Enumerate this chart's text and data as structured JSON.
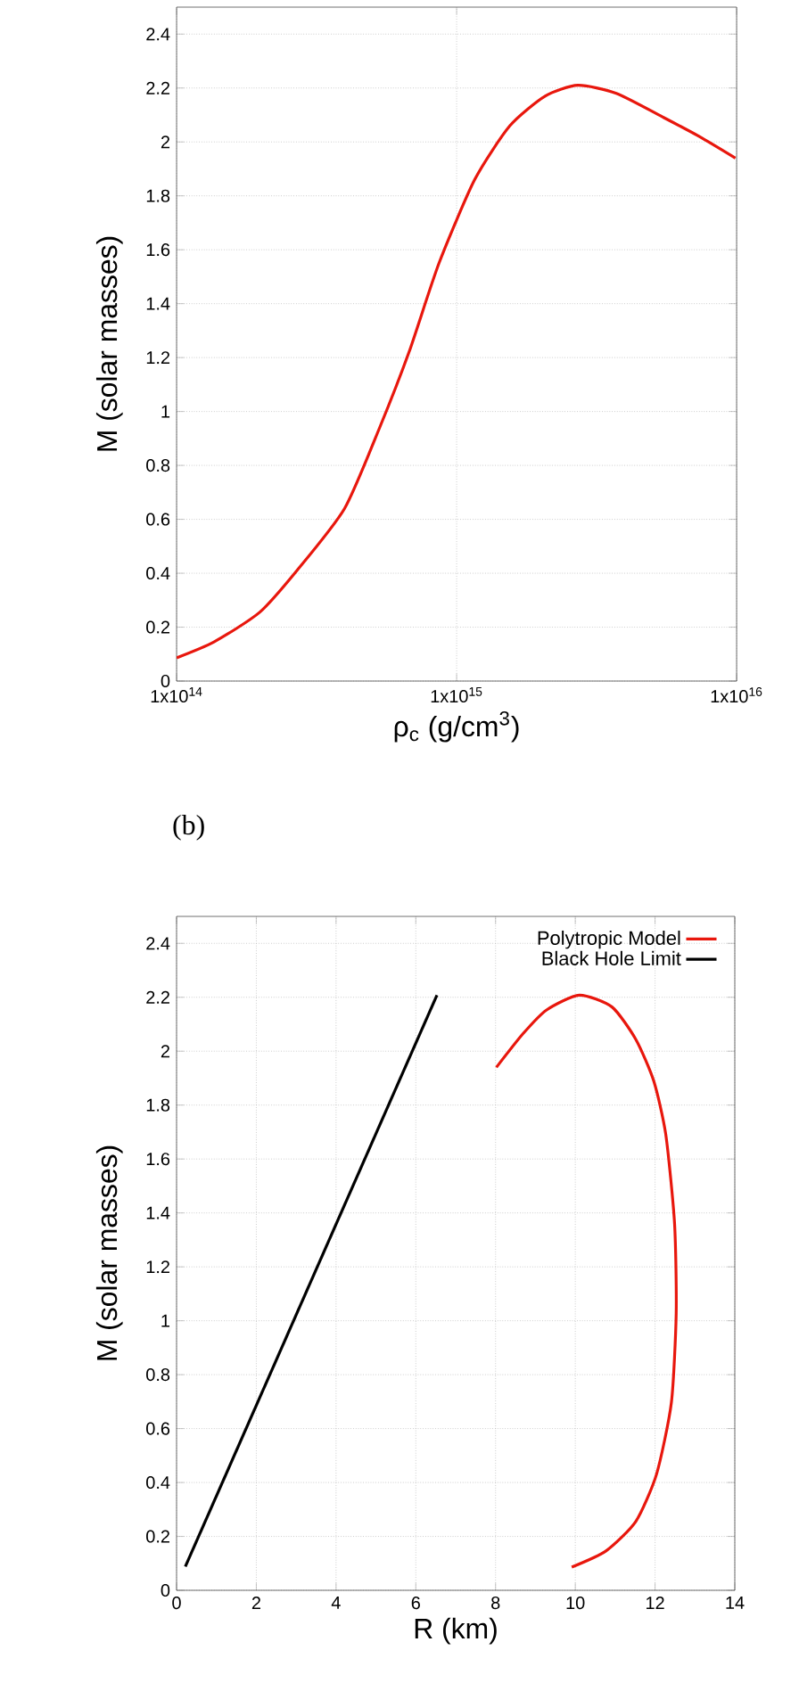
{
  "chart_data": [
    {
      "type": "line",
      "xlabel": "ρ$_{c}$ (g/cm$^{3}$)",
      "ylabel": "M (solar masses)",
      "log": "x",
      "grid": true,
      "xlim": [
        100000000000000.0,
        1e+16
      ],
      "ylim": [
        0,
        2.5
      ],
      "xticks": [
        {
          "value": 100000000000000.0,
          "label": "1x10$^{14}$"
        },
        {
          "value": 1000000000000000.0,
          "label": "1x10$^{15}$"
        },
        {
          "value": 1e+16,
          "label": "1x10$^{16}$"
        }
      ],
      "yticks": [
        0,
        0.2,
        0.4,
        0.6,
        0.8,
        1,
        1.2,
        1.4,
        1.6,
        1.8,
        2,
        2.2,
        2.4
      ],
      "series": [
        {
          "color": "#e8170d",
          "x": [
            100000000000000.0,
            136000000000000.0,
            198000000000000.0,
            269000000000000.0,
            398000000000000.0,
            531000000000000.0,
            676000000000000.0,
            865000000000000.0,
            1160000000000000.0,
            1550000000000000.0,
            2070000000000000.0,
            2710000000000000.0,
            3720000000000000.0,
            5500000000000000.0,
            7360000000000000.0,
            9900000000000000.0
          ],
          "values": [
            0.086,
            0.145,
            0.255,
            0.41,
            0.64,
            0.94,
            1.22,
            1.55,
            1.86,
            2.06,
            2.17,
            2.21,
            2.18,
            2.09,
            2.02,
            1.94
          ]
        }
      ]
    },
    {
      "type": "line",
      "xlabel": "R (km)",
      "ylabel": "M (solar masses)",
      "grid": true,
      "legend": "top right",
      "annotations": [
        "(b)"
      ],
      "xlim": [
        0,
        14
      ],
      "ylim": [
        0,
        2.5
      ],
      "xticks": [
        0,
        2,
        4,
        6,
        8,
        10,
        12,
        14
      ],
      "yticks": [
        0,
        0.2,
        0.4,
        0.6,
        0.8,
        1,
        1.2,
        1.4,
        1.6,
        1.8,
        2,
        2.2,
        2.4
      ],
      "series": [
        {
          "name": "Polytropic Model",
          "color": "#e8170d",
          "x": [
            8.02,
            8.69,
            9.28,
            10.1,
            10.92,
            11.52,
            11.97,
            12.27,
            12.49,
            12.53,
            12.41,
            12.04,
            11.52,
            10.77,
            9.91
          ],
          "values": [
            1.94,
            2.065,
            2.153,
            2.208,
            2.164,
            2.043,
            1.888,
            1.69,
            1.359,
            1.028,
            0.697,
            0.432,
            0.256,
            0.146,
            0.086
          ]
        },
        {
          "name": "Black Hole Limit",
          "color": "#000000",
          "x": [
            0.22,
            6.53
          ],
          "values": [
            0.088,
            2.208
          ]
        }
      ]
    }
  ]
}
